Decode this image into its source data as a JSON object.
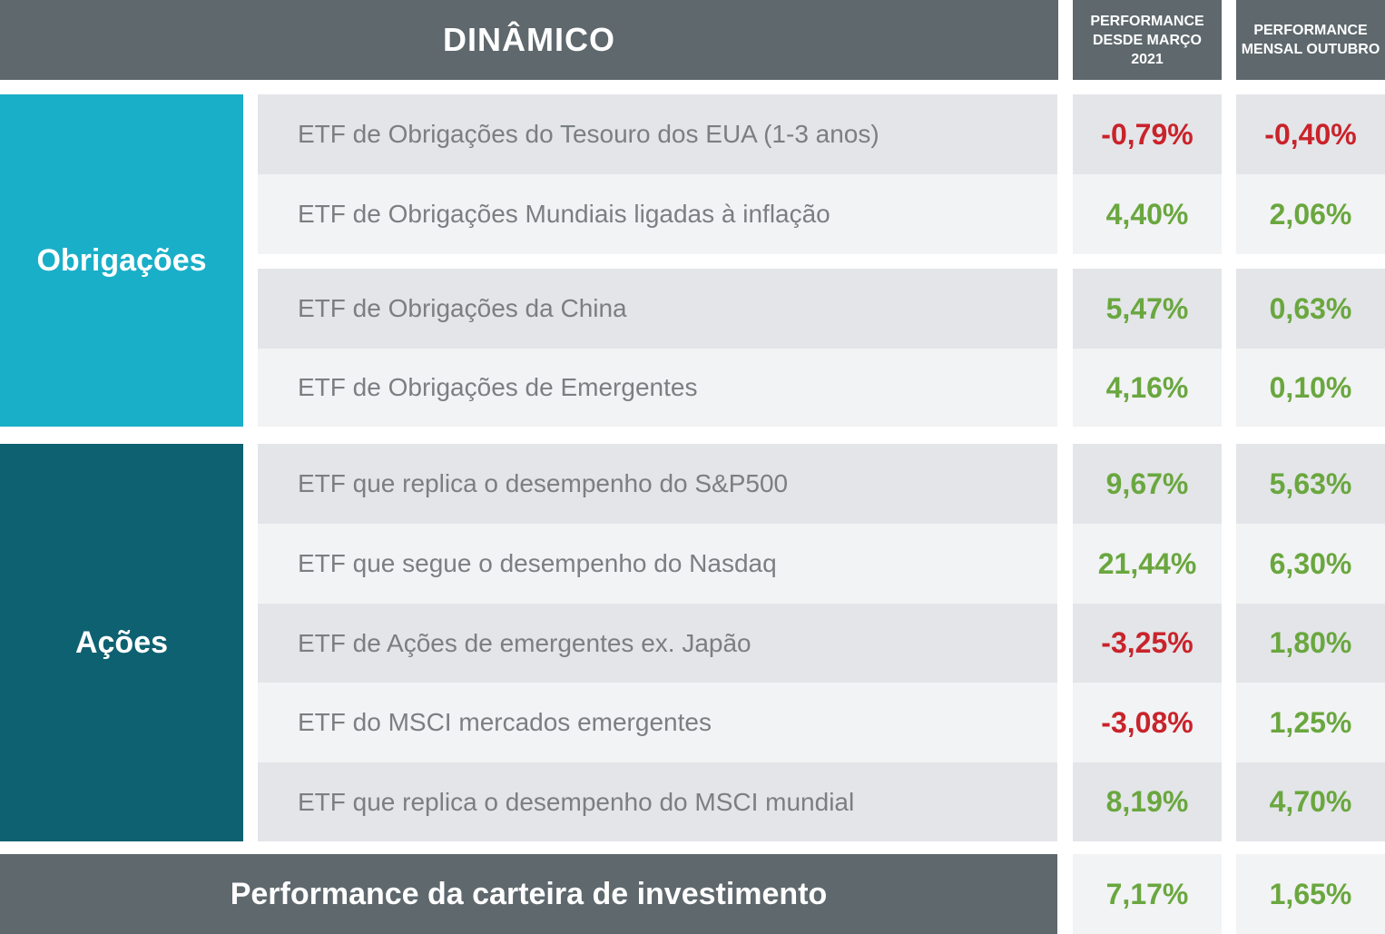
{
  "header": {
    "title": "DINÂMICO",
    "col1": "PERFORMANCE DESDE MARÇO 2021",
    "col2": "PERFORMANCE MENSAL OUTUBRO"
  },
  "categories": {
    "bonds": "Obrigações",
    "equity": "Ações"
  },
  "rows": [
    {
      "label": "ETF de Obrigações do Tesouro dos EUA (1-3 anos)",
      "since_march": "-0,79%",
      "monthly": "-0,40%"
    },
    {
      "label": "ETF de Obrigações Mundiais ligadas à inflação",
      "since_march": "4,40%",
      "monthly": "2,06%"
    },
    {
      "label": "ETF de Obrigações da China",
      "since_march": "5,47%",
      "monthly": "0,63%"
    },
    {
      "label": "ETF de Obrigações de Emergentes",
      "since_march": "4,16%",
      "monthly": "0,10%"
    },
    {
      "label": "ETF que replica o desempenho do S&P500",
      "since_march": "9,67%",
      "monthly": "5,63%"
    },
    {
      "label": "ETF que segue o desempenho do Nasdaq",
      "since_march": "21,44%",
      "monthly": "6,30%"
    },
    {
      "label": "ETF de Ações de emergentes ex. Japão",
      "since_march": "-3,25%",
      "monthly": "1,80%"
    },
    {
      "label": "ETF do MSCI  mercados emergentes",
      "since_march": "-3,08%",
      "monthly": "1,25%"
    },
    {
      "label": "ETF que replica o desempenho do MSCI mundial",
      "since_march": "8,19%",
      "monthly": "4,70%"
    }
  ],
  "total": {
    "label": "Performance da carteira de investimento",
    "since_march": "7,17%",
    "monthly": "1,65%"
  },
  "colors": {
    "header_bg": "#5e686d",
    "bonds_bg": "#1aafc8",
    "equity_bg": "#0e6170",
    "positive": "#6aa73f",
    "negative": "#c9232b"
  }
}
